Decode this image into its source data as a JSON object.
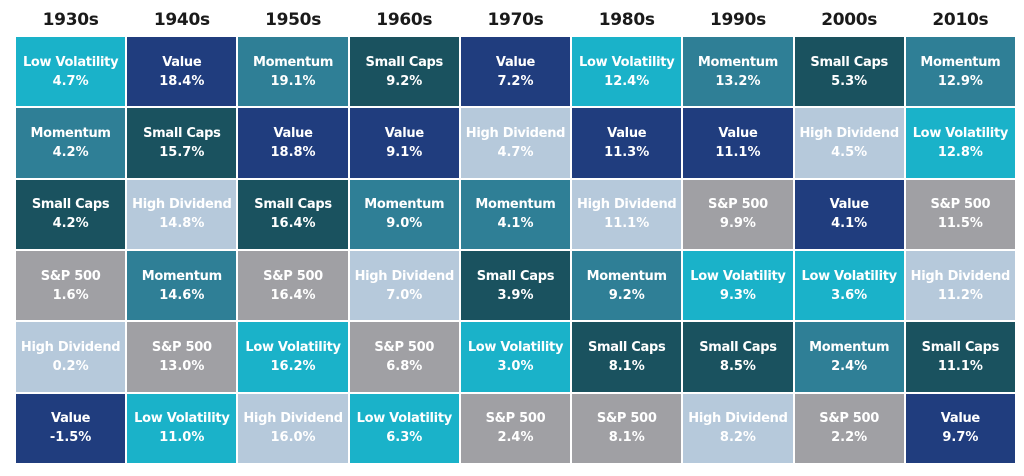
{
  "colors": {
    "Low Volatility": "#1ab2c9",
    "Value": "#203d7e",
    "Momentum": "#2f7f96",
    "Small Caps": "#1a525f",
    "High Dividend": "#b6c9db",
    "S&P 500": "#a0a0a4"
  },
  "chart_data": {
    "type": "table",
    "title": "",
    "categories": [
      "1930s",
      "1940s",
      "1950s",
      "1960s",
      "1970s",
      "1980s",
      "1990s",
      "2000s",
      "2010s"
    ],
    "columns": [
      [
        {
          "name": "Low Volatility",
          "value": "4.7%"
        },
        {
          "name": "Momentum",
          "value": "4.2%"
        },
        {
          "name": "Small Caps",
          "value": "4.2%"
        },
        {
          "name": "S&P 500",
          "value": "1.6%"
        },
        {
          "name": "High Dividend",
          "value": "0.2%"
        },
        {
          "name": "Value",
          "value": "-1.5%"
        }
      ],
      [
        {
          "name": "Value",
          "value": "18.4%"
        },
        {
          "name": "Small Caps",
          "value": "15.7%"
        },
        {
          "name": "High Dividend",
          "value": "14.8%"
        },
        {
          "name": "Momentum",
          "value": "14.6%"
        },
        {
          "name": "S&P 500",
          "value": "13.0%"
        },
        {
          "name": "Low Volatility",
          "value": "11.0%"
        }
      ],
      [
        {
          "name": "Momentum",
          "value": "19.1%"
        },
        {
          "name": "Value",
          "value": "18.8%"
        },
        {
          "name": "Small Caps",
          "value": "16.4%"
        },
        {
          "name": "S&P 500",
          "value": "16.4%"
        },
        {
          "name": "Low Volatility",
          "value": "16.2%"
        },
        {
          "name": "High Dividend",
          "value": "16.0%"
        }
      ],
      [
        {
          "name": "Small Caps",
          "value": "9.2%"
        },
        {
          "name": "Value",
          "value": "9.1%"
        },
        {
          "name": "Momentum",
          "value": "9.0%"
        },
        {
          "name": "High Dividend",
          "value": "7.0%"
        },
        {
          "name": "S&P 500",
          "value": "6.8%"
        },
        {
          "name": "Low Volatility",
          "value": "6.3%"
        }
      ],
      [
        {
          "name": "Value",
          "value": "7.2%"
        },
        {
          "name": "High Dividend",
          "value": "4.7%"
        },
        {
          "name": "Momentum",
          "value": "4.1%"
        },
        {
          "name": "Small Caps",
          "value": "3.9%"
        },
        {
          "name": "Low Volatility",
          "value": "3.0%"
        },
        {
          "name": "S&P 500",
          "value": "2.4%"
        }
      ],
      [
        {
          "name": "Low Volatility",
          "value": "12.4%"
        },
        {
          "name": "Value",
          "value": "11.3%"
        },
        {
          "name": "High Dividend",
          "value": "11.1%"
        },
        {
          "name": "Momentum",
          "value": "9.2%"
        },
        {
          "name": "Small Caps",
          "value": "8.1%"
        },
        {
          "name": "S&P 500",
          "value": "8.1%"
        }
      ],
      [
        {
          "name": "Momentum",
          "value": "13.2%"
        },
        {
          "name": "Value",
          "value": "11.1%"
        },
        {
          "name": "S&P 500",
          "value": "9.9%"
        },
        {
          "name": "Low Volatility",
          "value": "9.3%"
        },
        {
          "name": "Small Caps",
          "value": "8.5%"
        },
        {
          "name": "High Dividend",
          "value": "8.2%"
        }
      ],
      [
        {
          "name": "Small Caps",
          "value": "5.3%"
        },
        {
          "name": "High Dividend",
          "value": "4.5%"
        },
        {
          "name": "Value",
          "value": "4.1%"
        },
        {
          "name": "Low Volatility",
          "value": "3.6%"
        },
        {
          "name": "Momentum",
          "value": "2.4%"
        },
        {
          "name": "S&P 500",
          "value": "2.2%"
        }
      ],
      [
        {
          "name": "Momentum",
          "value": "12.9%"
        },
        {
          "name": "Low Volatility",
          "value": "12.8%"
        },
        {
          "name": "S&P 500",
          "value": "11.5%"
        },
        {
          "name": "High Dividend",
          "value": "11.2%"
        },
        {
          "name": "Small Caps",
          "value": "11.1%"
        },
        {
          "name": "Value",
          "value": "9.7%"
        }
      ]
    ]
  }
}
